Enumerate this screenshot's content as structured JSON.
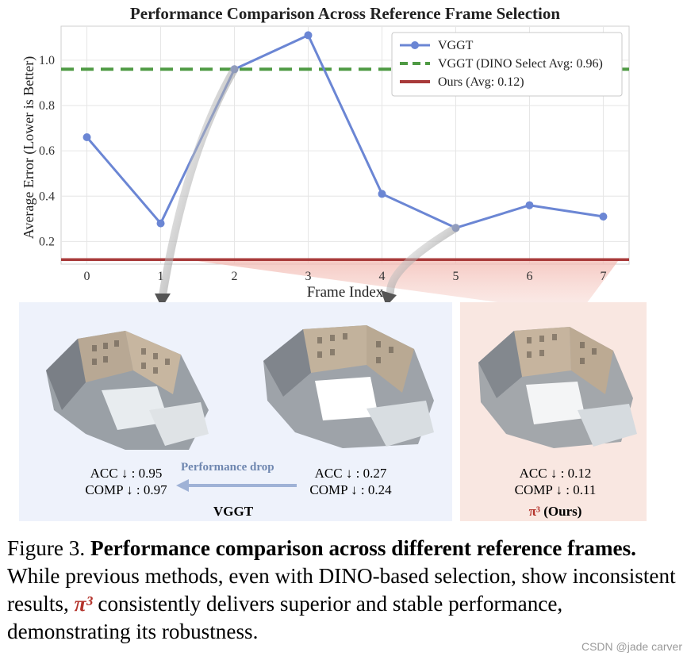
{
  "chart_data": {
    "type": "line",
    "title": "Performance Comparison Across Reference Frame Selection",
    "xlabel": "Frame Index",
    "ylabel": "Average Error (Lower is Better)",
    "x": [
      0,
      1,
      2,
      3,
      4,
      5,
      6,
      7
    ],
    "xlim": [
      -0.35,
      7.35
    ],
    "ylim": [
      0.1,
      1.15
    ],
    "xticks": [
      "0",
      "1",
      "2",
      "3",
      "4",
      "5",
      "6",
      "7"
    ],
    "yticks": [
      "0.2",
      "0.4",
      "0.6",
      "0.8",
      "1.0"
    ],
    "grid": true,
    "legend_position": "top-right",
    "series": [
      {
        "name": "VGGT",
        "style": "line-marker",
        "color": "#6b86d4",
        "values": [
          0.66,
          0.28,
          0.96,
          1.11,
          0.41,
          0.26,
          0.36,
          0.31
        ]
      },
      {
        "name": "VGGT (DINO Select Avg: 0.96)",
        "style": "dashed",
        "color": "#4f9a44",
        "values": [
          0.96,
          0.96,
          0.96,
          0.96,
          0.96,
          0.96,
          0.96,
          0.96
        ]
      },
      {
        "name": "Ours (Avg: 0.12)",
        "style": "solid",
        "color": "#a83a3a",
        "values": [
          0.12,
          0.12,
          0.12,
          0.12,
          0.12,
          0.12,
          0.12,
          0.12
        ]
      }
    ]
  },
  "panels": {
    "vggt_left": {
      "acc": "ACC ↓ : 0.95",
      "comp": "COMP ↓ : 0.97"
    },
    "vggt_right": {
      "acc": "ACC ↓ : 0.27",
      "comp": "COMP ↓ : 0.24"
    },
    "perf_drop": "Performance drop",
    "vggt_label": "VGGT",
    "ours": {
      "acc": "ACC ↓ : 0.12",
      "comp": "COMP ↓ : 0.11",
      "label_pi": "π³",
      "label_rest": " (Ours)"
    }
  },
  "caption": {
    "figure_no": "Figure 3.",
    "bold": "Performance comparison across different reference frames.",
    "text_a": "While previous methods, even with DINO-based selection, show inconsistent results,",
    "pi": "π³",
    "text_b": "consistently delivers superior and stable performance, demonstrating its robustness."
  },
  "watermark": "CSDN @jade carver",
  "colors": {
    "vggt_panel": "#eef2fb",
    "ours_panel": "#f9e7e1",
    "pi_red": "#b3322a"
  }
}
